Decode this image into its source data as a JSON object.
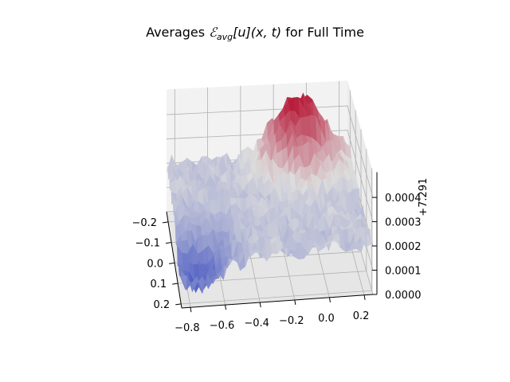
{
  "chart_data": {
    "type": "surface",
    "title": "Averages ℰavg[u](x, t) for Full Time",
    "title_parts": {
      "prefix": "Averages ",
      "script_e": "ℰ",
      "subscript": "avg",
      "bracket": "[u](x, t)",
      "suffix": " for Full Time"
    },
    "xlabel": "",
    "ylabel": "",
    "zlabel": "",
    "colormap": "coolwarm",
    "x_ticks": [
      "−0.8",
      "−0.6",
      "−0.4",
      "−0.2",
      "0.0",
      "0.2"
    ],
    "x_range": [
      -0.85,
      0.25
    ],
    "y_ticks": [
      "−0.2",
      "−0.1",
      "0.0",
      "0.1",
      "0.2"
    ],
    "y_range": [
      -0.25,
      0.22
    ],
    "z_ticks": [
      "0.0000",
      "0.0001",
      "0.0002",
      "0.0003",
      "0.0004"
    ],
    "z_offset": "+7.291",
    "z_range": [
      0.0,
      0.00048
    ],
    "grid": true,
    "surface_summary": {
      "base_level": 0.0002,
      "noise_amplitude": 8e-05,
      "peak": {
        "x": -0.05,
        "y": -0.22,
        "z": 0.00045
      },
      "low_region": {
        "x": -0.75,
        "y": 0.15,
        "z": 5e-05
      }
    }
  },
  "colors": {
    "low": "#3b4cc0",
    "mid": "#dddddd",
    "high": "#b40426",
    "pane": "#f2f2f2",
    "grid": "#b0b0b0"
  }
}
